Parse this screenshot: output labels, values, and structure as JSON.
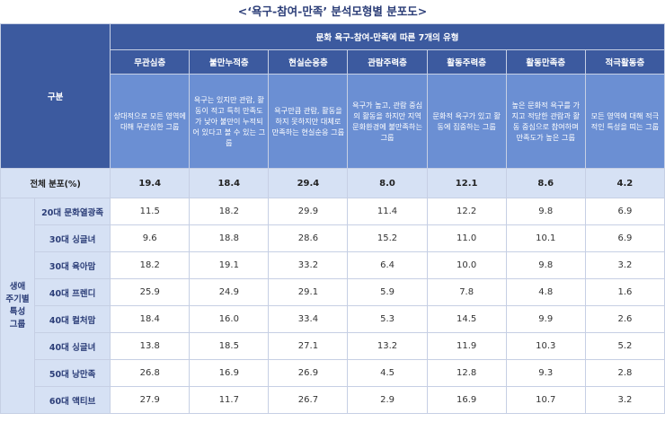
{
  "title": "<‘욕구-참여-만족’ 분석모형별 분포도>",
  "header": {
    "corner_label": "구분",
    "main_label": "문화 욕구-참여-만족에 따른 7개의 유형"
  },
  "types": [
    {
      "name": "무관심층",
      "desc": "상대적으로 모든 영역에 대해 무관심한 그룹"
    },
    {
      "name": "불만누적층",
      "desc": "욕구는 있지만 관람, 활동이 적고 특히 만족도가 낮아 불만이 누적되어 있다고 볼 수 있는 그룹"
    },
    {
      "name": "현실순응층",
      "desc": "욕구만큼 관람, 활동을 하지 못하지만 대체로 만족하는 현실순응 그룹"
    },
    {
      "name": "관람주력층",
      "desc": "욕구가 높고, 관람 중심의 활동을 하지만 지역 문화환경에 불만족하는 그룹"
    },
    {
      "name": "활동주력층",
      "desc": "문화적 욕구가 있고 활동에 집중하는 그룹"
    },
    {
      "name": "활동만족층",
      "desc": "높은 문화적 욕구를 가지고 적당한 관람과 활동 중심으로 참여하며 만족도가 높은 그룹"
    },
    {
      "name": "적극활동층",
      "desc": "모든 영역에 대해 적극적인 특성을 띠는 그룹"
    }
  ],
  "total": {
    "label": "전체 분포(%)",
    "values": [
      "19.4",
      "18.4",
      "29.4",
      "8.0",
      "12.1",
      "8.6",
      "4.2"
    ]
  },
  "group": {
    "label_lines": [
      "생애",
      "주기별",
      "특성",
      "그룹"
    ],
    "rows": [
      {
        "label": "20대 문화열광족",
        "values": [
          "11.5",
          "18.2",
          "29.9",
          "11.4",
          "12.2",
          "9.8",
          "6.9"
        ]
      },
      {
        "label": "30대 싱글녀",
        "values": [
          "9.6",
          "18.8",
          "28.6",
          "15.2",
          "11.0",
          "10.1",
          "6.9"
        ]
      },
      {
        "label": "30대 육아맘",
        "values": [
          "18.2",
          "19.1",
          "33.2",
          "6.4",
          "10.0",
          "9.8",
          "3.2"
        ]
      },
      {
        "label": "40대 프렌디",
        "values": [
          "25.9",
          "24.9",
          "29.1",
          "5.9",
          "7.8",
          "4.8",
          "1.6"
        ]
      },
      {
        "label": "40대 컬처맘",
        "values": [
          "18.4",
          "16.0",
          "33.4",
          "5.3",
          "14.5",
          "9.9",
          "2.6"
        ]
      },
      {
        "label": "40대 싱글녀",
        "values": [
          "13.8",
          "18.5",
          "27.1",
          "13.2",
          "11.9",
          "10.3",
          "5.2"
        ]
      },
      {
        "label": "50대 낭만족",
        "values": [
          "26.8",
          "16.9",
          "26.9",
          "4.5",
          "12.8",
          "9.3",
          "2.8"
        ]
      },
      {
        "label": "60대 액티브",
        "values": [
          "27.9",
          "11.7",
          "26.7",
          "2.9",
          "16.9",
          "10.7",
          "3.2"
        ]
      }
    ]
  }
}
